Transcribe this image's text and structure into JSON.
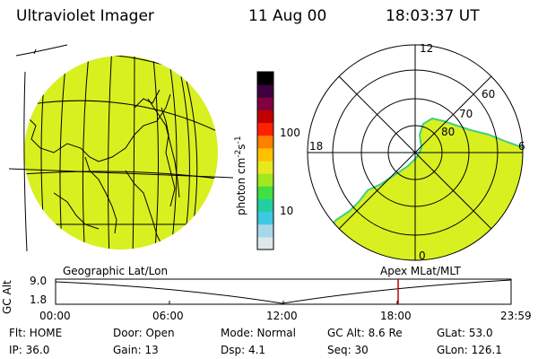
{
  "header": {
    "instrument": "Ultraviolet Imager",
    "date": "11 Aug 00",
    "time": "18:03:37 UT"
  },
  "colorbar": {
    "unit_label": "photon cm",
    "unit_exp1": "-2",
    "unit_s": "s",
    "unit_exp2": "-1",
    "tick_100": "100",
    "tick_10": "10",
    "colors": [
      "#dce8ec",
      "#a8d8e8",
      "#40c8e0",
      "#20d0a0",
      "#40e040",
      "#a0e820",
      "#e8e820",
      "#ffc000",
      "#ff8000",
      "#ff2000",
      "#c00000",
      "#800040",
      "#400040",
      "#000000"
    ]
  },
  "geo_map": {
    "label": "Geographic Lat/Lon",
    "fill_color": "#d8f020"
  },
  "polar_map": {
    "label": "Apex MLat/MLT",
    "mlt_top": "12",
    "mlt_left": "18",
    "mlt_right": "6",
    "mlt_bottom": "0",
    "lat_60": "60",
    "lat_70": "70",
    "lat_80": "80",
    "fill_color": "#d8f020"
  },
  "altitude_plot": {
    "ylabel": "GC Alt",
    "ytick_top": "9.0",
    "ytick_bottom": "1.8",
    "xticks": [
      "00:00",
      "06:00",
      "12:00",
      "18:00",
      "23:59"
    ],
    "current_time_fraction": 0.752
  },
  "status": {
    "flt": "Flt: HOME",
    "ip": "IP: 36.0",
    "door": "Door: Open",
    "gain": "Gain: 13",
    "mode": "Mode: Normal",
    "dsp": "Dsp:     4.1",
    "gc_alt": "GC Alt: 8.6 Re",
    "seq": "Seq: 30",
    "glat": "GLat:  53.0",
    "glon": "GLon: 126.1"
  }
}
